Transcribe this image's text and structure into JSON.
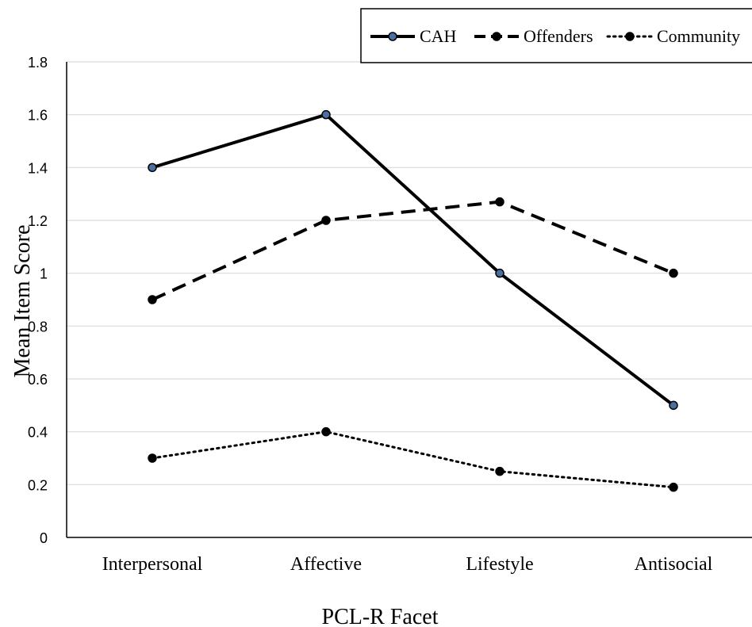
{
  "chart_data": {
    "type": "line",
    "title": "",
    "xlabel": "PCL-R Facet",
    "ylabel": "Mean Item Score",
    "categories": [
      "Interpersonal",
      "Affective",
      "Lifestyle",
      "Antisocial"
    ],
    "ylim": [
      0,
      1.8
    ],
    "yticks": [
      "0",
      "0.2",
      "0.4",
      "0.6",
      "0.8",
      "1",
      "1.2",
      "1.4",
      "1.6",
      "1.8"
    ],
    "grid": true,
    "legend_position": "top-right",
    "series": [
      {
        "name": "CAH",
        "values": [
          1.4,
          1.6,
          1.0,
          0.5
        ],
        "line_style": "solid",
        "marker_fill": "#4a6fa5"
      },
      {
        "name": "Offenders",
        "values": [
          0.9,
          1.2,
          1.27,
          1.0
        ],
        "line_style": "dashed",
        "marker_fill": "#000000"
      },
      {
        "name": "Community",
        "values": [
          0.3,
          0.4,
          0.25,
          0.19
        ],
        "line_style": "dotted",
        "marker_fill": "#000000"
      }
    ]
  }
}
